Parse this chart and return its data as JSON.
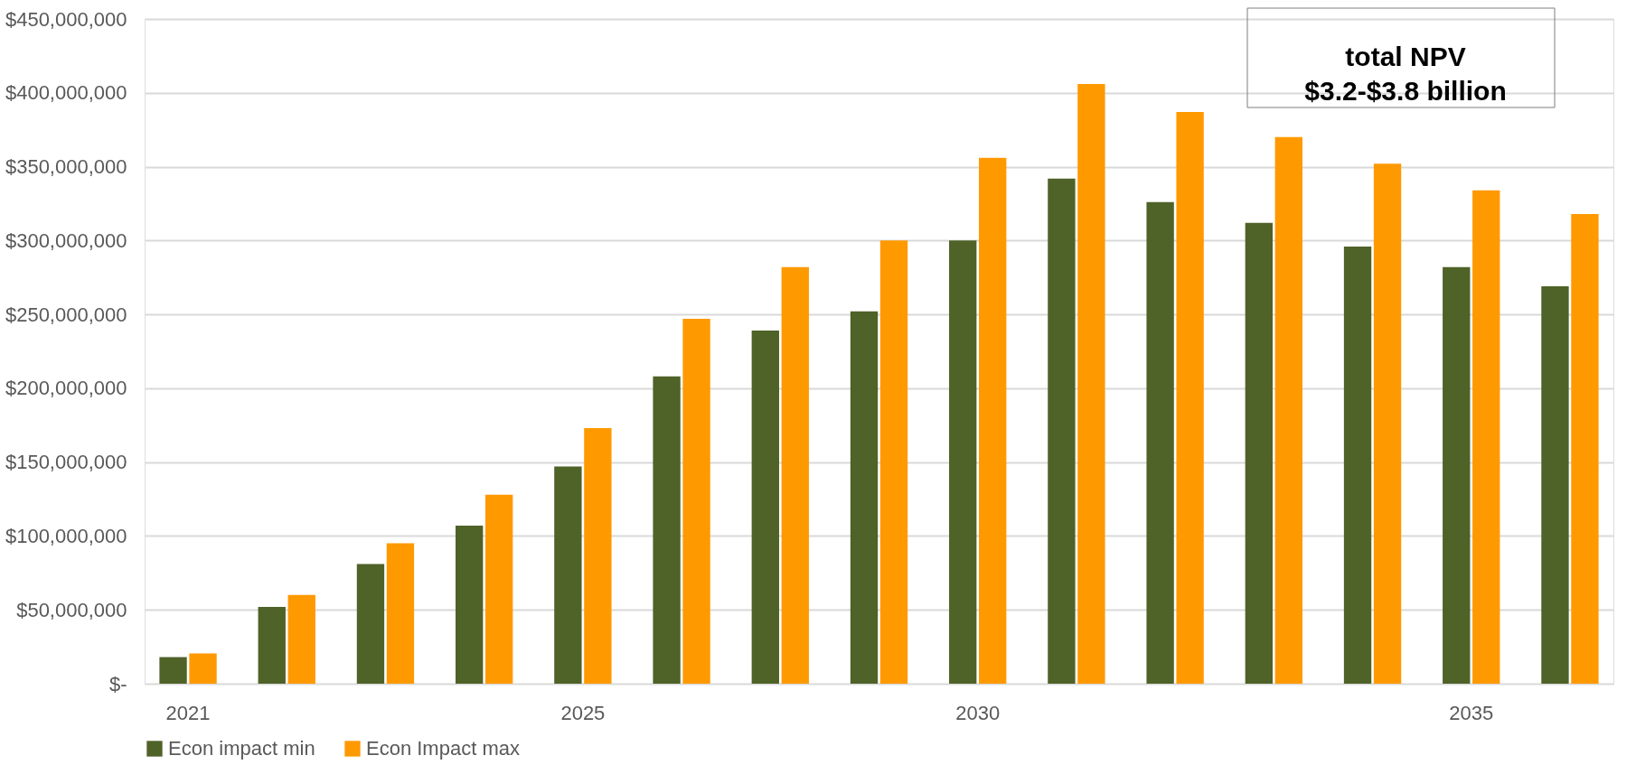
{
  "chart_data": {
    "type": "bar",
    "categories": [
      "2021",
      null,
      null,
      null,
      "2025",
      null,
      null,
      null,
      "2030",
      null,
      null,
      null,
      null,
      "2035",
      null
    ],
    "series": [
      {
        "name": "Econ impact min",
        "color": "#4f6228",
        "values": [
          18000000,
          52000000,
          81000000,
          107000000,
          147000000,
          208000000,
          239000000,
          252000000,
          300000000,
          342000000,
          326000000,
          312000000,
          296000000,
          282000000,
          269000000
        ]
      },
      {
        "name": "Econ Impact max",
        "color": "#ff9900",
        "values": [
          20500000,
          60000000,
          95000000,
          128000000,
          173000000,
          247000000,
          282000000,
          300000000,
          356000000,
          406000000,
          387000000,
          370000000,
          352000000,
          334000000,
          318000000
        ]
      }
    ],
    "ylim": [
      0,
      450000000
    ],
    "yticks": [
      {
        "value": 0,
        "label": "$-"
      },
      {
        "value": 50000000,
        "label": "$50,000,000"
      },
      {
        "value": 100000000,
        "label": "$100,000,000"
      },
      {
        "value": 150000000,
        "label": "$150,000,000"
      },
      {
        "value": 200000000,
        "label": "$200,000,000"
      },
      {
        "value": 250000000,
        "label": "$250,000,000"
      },
      {
        "value": 300000000,
        "label": "$300,000,000"
      },
      {
        "value": 350000000,
        "label": "$350,000,000"
      },
      {
        "value": 400000000,
        "label": "$400,000,000"
      },
      {
        "value": 450000000,
        "label": "$450,000,000"
      }
    ],
    "grid": "y",
    "legend": "bottom",
    "annotations": [
      "total NPV\n$3.2-$3.8 billion"
    ]
  }
}
